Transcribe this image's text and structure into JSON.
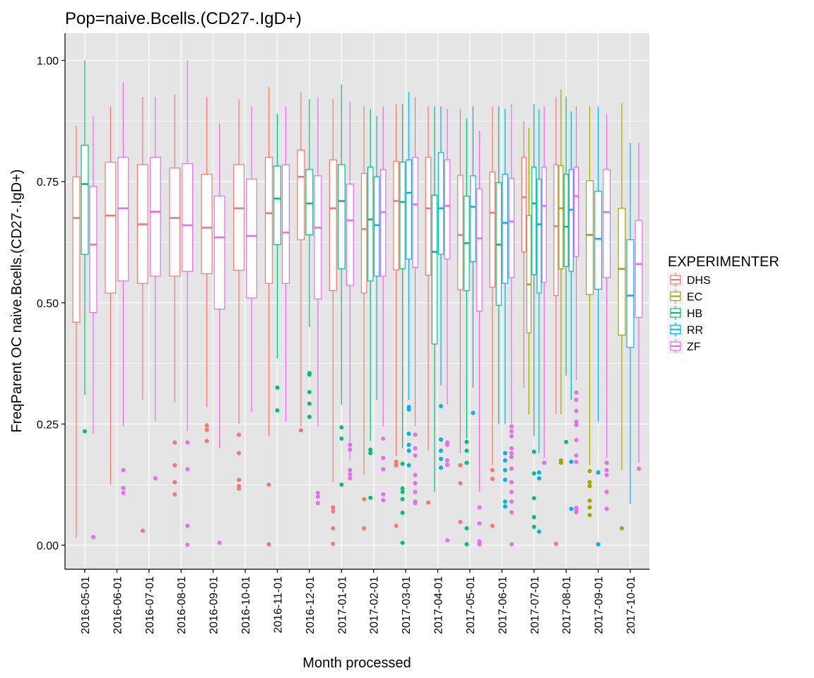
{
  "chart_data": {
    "type": "boxplot",
    "title": "Pop=naive.Bcells.(CD27-.IgD+)",
    "xlabel": "Month processed",
    "ylabel": "FreqParent OC naive.Bcells.(CD27-.IgD+)",
    "ylim": [
      -0.05,
      1.05
    ],
    "yticks": [
      0.0,
      0.25,
      0.5,
      0.75,
      1.0
    ],
    "ytick_labels": [
      "0.00",
      "0.25",
      "0.50",
      "0.75",
      "1.00"
    ],
    "grid": true,
    "legend": {
      "title": "EXPERIMENTER",
      "position": "right",
      "entries": [
        "DHS",
        "EC",
        "HB",
        "RR",
        "ZF"
      ]
    },
    "colors": {
      "DHS": "#F8766D",
      "EC": "#A3A500",
      "HB": "#00BF7D",
      "RR": "#00B0F6",
      "ZF": "#E76BF3",
      "panel": "#E5E5E5",
      "grid": "#FFFFFF"
    },
    "categories": [
      "2016-05-01",
      "2016-06-01",
      "2016-07-01",
      "2016-08-01",
      "2016-09-01",
      "2016-10-01",
      "2016-11-01",
      "2016-12-01",
      "2017-01-01",
      "2017-02-01",
      "2017-03-01",
      "2017-04-01",
      "2017-05-01",
      "2017-06-01",
      "2017-07-01",
      "2017-08-01",
      "2017-09-01",
      "2017-10-01"
    ],
    "groups": [
      {
        "category": "2016-05-01",
        "boxes": [
          {
            "series": "DHS",
            "q1": 0.46,
            "median": 0.675,
            "q3": 0.76,
            "lower": 0.015,
            "upper": 0.865,
            "outliers": []
          },
          {
            "series": "HB",
            "q1": 0.6,
            "median": 0.745,
            "q3": 0.825,
            "lower": 0.31,
            "upper": 1.0,
            "outliers": [
              0.235
            ]
          },
          {
            "series": "ZF",
            "q1": 0.48,
            "median": 0.62,
            "q3": 0.74,
            "lower": 0.23,
            "upper": 0.885,
            "outliers": [
              0.017
            ]
          }
        ]
      },
      {
        "category": "2016-06-01",
        "boxes": [
          {
            "series": "DHS",
            "q1": 0.52,
            "median": 0.68,
            "q3": 0.79,
            "lower": 0.125,
            "upper": 0.905,
            "outliers": []
          },
          {
            "series": "ZF",
            "q1": 0.545,
            "median": 0.695,
            "q3": 0.8,
            "lower": 0.245,
            "upper": 0.955,
            "outliers": [
              0.155,
              0.118,
              0.108
            ]
          }
        ]
      },
      {
        "category": "2016-07-01",
        "boxes": [
          {
            "series": "DHS",
            "q1": 0.54,
            "median": 0.662,
            "q3": 0.785,
            "lower": 0.3,
            "upper": 0.925,
            "outliers": [
              0.03
            ]
          },
          {
            "series": "ZF",
            "q1": 0.555,
            "median": 0.688,
            "q3": 0.8,
            "lower": 0.255,
            "upper": 0.925,
            "outliers": [
              0.138
            ]
          }
        ]
      },
      {
        "category": "2016-08-01",
        "boxes": [
          {
            "series": "DHS",
            "q1": 0.555,
            "median": 0.675,
            "q3": 0.778,
            "lower": 0.295,
            "upper": 0.93,
            "outliers": [
              0.212,
              0.165,
              0.13,
              0.105
            ]
          },
          {
            "series": "ZF",
            "q1": 0.565,
            "median": 0.66,
            "q3": 0.787,
            "lower": 0.235,
            "upper": 1.0,
            "outliers": [
              0.212,
              0.157,
              0.04,
              0.001
            ]
          }
        ]
      },
      {
        "category": "2016-09-01",
        "boxes": [
          {
            "series": "DHS",
            "q1": 0.56,
            "median": 0.655,
            "q3": 0.765,
            "lower": 0.285,
            "upper": 0.925,
            "outliers": [
              0.247,
              0.238,
              0.215
            ]
          },
          {
            "series": "ZF",
            "q1": 0.487,
            "median": 0.635,
            "q3": 0.72,
            "lower": 0.2,
            "upper": 0.87,
            "outliers": [
              0.005
            ]
          }
        ]
      },
      {
        "category": "2016-10-01",
        "boxes": [
          {
            "series": "DHS",
            "q1": 0.567,
            "median": 0.695,
            "q3": 0.785,
            "lower": 0.25,
            "upper": 0.92,
            "outliers": [
              0.228,
              0.19,
              0.135,
              0.122,
              0.117
            ]
          },
          {
            "series": "ZF",
            "q1": 0.51,
            "median": 0.638,
            "q3": 0.755,
            "lower": 0.275,
            "upper": 0.905,
            "outliers": []
          }
        ]
      },
      {
        "category": "2016-11-01",
        "boxes": [
          {
            "series": "DHS",
            "q1": 0.54,
            "median": 0.685,
            "q3": 0.8,
            "lower": 0.225,
            "upper": 0.945,
            "outliers": [
              0.125,
              0.002
            ]
          },
          {
            "series": "HB",
            "q1": 0.62,
            "median": 0.715,
            "q3": 0.782,
            "lower": 0.385,
            "upper": 0.89,
            "outliers": [
              0.325,
              0.278
            ]
          },
          {
            "series": "ZF",
            "q1": 0.54,
            "median": 0.645,
            "q3": 0.785,
            "lower": 0.255,
            "upper": 0.905,
            "outliers": []
          }
        ]
      },
      {
        "category": "2016-12-01",
        "boxes": [
          {
            "series": "DHS",
            "q1": 0.63,
            "median": 0.76,
            "q3": 0.815,
            "lower": 0.245,
            "upper": 0.935,
            "outliers": [
              0.237
            ]
          },
          {
            "series": "HB",
            "q1": 0.64,
            "median": 0.705,
            "q3": 0.775,
            "lower": 0.45,
            "upper": 0.92,
            "outliers": [
              0.355,
              0.352,
              0.316,
              0.292,
              0.265
            ]
          },
          {
            "series": "ZF",
            "q1": 0.508,
            "median": 0.655,
            "q3": 0.762,
            "lower": 0.245,
            "upper": 0.925,
            "outliers": [
              0.108,
              0.1,
              0.087
            ]
          }
        ]
      },
      {
        "category": "2017-01-01",
        "boxes": [
          {
            "series": "DHS",
            "q1": 0.525,
            "median": 0.695,
            "q3": 0.795,
            "lower": 0.13,
            "upper": 0.92,
            "outliers": [
              0.078,
              0.07,
              0.035,
              0.003
            ]
          },
          {
            "series": "HB",
            "q1": 0.57,
            "median": 0.71,
            "q3": 0.785,
            "lower": 0.29,
            "upper": 0.95,
            "outliers": [
              0.243,
              0.22,
              0.125
            ]
          },
          {
            "series": "ZF",
            "q1": 0.536,
            "median": 0.67,
            "q3": 0.745,
            "lower": 0.175,
            "upper": 0.915,
            "outliers": [
              0.207,
              0.197,
              0.155,
              0.146,
              0.138
            ]
          }
        ]
      },
      {
        "category": "2017-02-01",
        "boxes": [
          {
            "series": "DHS",
            "q1": 0.52,
            "median": 0.652,
            "q3": 0.767,
            "lower": 0.145,
            "upper": 0.905,
            "outliers": [
              0.095,
              0.035
            ]
          },
          {
            "series": "HB",
            "q1": 0.545,
            "median": 0.672,
            "q3": 0.78,
            "lower": 0.215,
            "upper": 0.9,
            "outliers": [
              0.197,
              0.19,
              0.098
            ]
          },
          {
            "series": "RR",
            "q1": 0.555,
            "median": 0.66,
            "q3": 0.76,
            "lower": 0.3,
            "upper": 0.885,
            "outliers": []
          },
          {
            "series": "ZF",
            "q1": 0.555,
            "median": 0.687,
            "q3": 0.775,
            "lower": 0.245,
            "upper": 0.905,
            "outliers": [
              0.22,
              0.18,
              0.157,
              0.105,
              0.093
            ]
          }
        ]
      },
      {
        "category": "2017-03-01",
        "boxes": [
          {
            "series": "DHS",
            "q1": 0.568,
            "median": 0.71,
            "q3": 0.792,
            "lower": 0.185,
            "upper": 0.91,
            "outliers": [
              0.172,
              0.165,
              0.04
            ]
          },
          {
            "series": "HB",
            "q1": 0.57,
            "median": 0.708,
            "q3": 0.79,
            "lower": 0.2,
            "upper": 0.91,
            "outliers": [
              0.168,
              0.117,
              0.11,
              0.095,
              0.067,
              0.005
            ]
          },
          {
            "series": "RR",
            "q1": 0.59,
            "median": 0.727,
            "q3": 0.795,
            "lower": 0.3,
            "upper": 0.935,
            "outliers": [
              0.285,
              0.28,
              0.23,
              0.207,
              0.195,
              0.165
            ]
          },
          {
            "series": "ZF",
            "q1": 0.573,
            "median": 0.703,
            "q3": 0.8,
            "lower": 0.245,
            "upper": 0.925,
            "outliers": [
              0.228,
              0.2,
              0.185,
              0.145,
              0.128,
              0.11,
              0.09,
              0.087
            ]
          }
        ]
      },
      {
        "category": "2017-04-01",
        "boxes": [
          {
            "series": "DHS",
            "q1": 0.557,
            "median": 0.695,
            "q3": 0.8,
            "lower": 0.195,
            "upper": 0.905,
            "outliers": [
              0.088
            ]
          },
          {
            "series": "HB",
            "q1": 0.415,
            "median": 0.605,
            "q3": 0.722,
            "lower": 0.11,
            "upper": 0.905,
            "outliers": []
          },
          {
            "series": "RR",
            "q1": 0.6,
            "median": 0.695,
            "q3": 0.81,
            "lower": 0.33,
            "upper": 0.905,
            "outliers": [
              0.287,
              0.218,
              0.195,
              0.178,
              0.16
            ]
          },
          {
            "series": "ZF",
            "q1": 0.59,
            "median": 0.7,
            "q3": 0.795,
            "lower": 0.29,
            "upper": 0.9,
            "outliers": [
              0.212,
              0.207,
              0.175,
              0.166,
              0.01
            ]
          }
        ]
      },
      {
        "category": "2017-05-01",
        "boxes": [
          {
            "series": "DHS",
            "q1": 0.527,
            "median": 0.64,
            "q3": 0.763,
            "lower": 0.19,
            "upper": 0.9,
            "outliers": [
              0.165,
              0.128,
              0.048
            ]
          },
          {
            "series": "HB",
            "q1": 0.525,
            "median": 0.623,
            "q3": 0.72,
            "lower": 0.22,
            "upper": 0.88,
            "outliers": [
              0.213,
              0.195,
              0.17,
              0.035,
              0.002
            ]
          },
          {
            "series": "RR",
            "q1": 0.585,
            "median": 0.698,
            "q3": 0.762,
            "lower": 0.325,
            "upper": 0.905,
            "outliers": [
              0.273
            ]
          },
          {
            "series": "ZF",
            "q1": 0.483,
            "median": 0.633,
            "q3": 0.735,
            "lower": 0.11,
            "upper": 0.855,
            "outliers": [
              0.078,
              0.045,
              0.008,
              0.002
            ]
          }
        ]
      },
      {
        "category": "2017-06-01",
        "boxes": [
          {
            "series": "DHS",
            "q1": 0.532,
            "median": 0.686,
            "q3": 0.77,
            "lower": 0.165,
            "upper": 0.905,
            "outliers": [
              0.155,
              0.137,
              0.04
            ]
          },
          {
            "series": "HB",
            "q1": 0.495,
            "median": 0.62,
            "q3": 0.748,
            "lower": 0.25,
            "upper": 0.905,
            "outliers": []
          },
          {
            "series": "RR",
            "q1": 0.54,
            "median": 0.665,
            "q3": 0.765,
            "lower": 0.25,
            "upper": 0.9,
            "outliers": [
              0.19,
              0.175,
              0.155,
              0.135,
              0.09,
              0.08
            ]
          },
          {
            "series": "ZF",
            "q1": 0.552,
            "median": 0.668,
            "q3": 0.757,
            "lower": 0.25,
            "upper": 0.91,
            "outliers": [
              0.245,
              0.235,
              0.225,
              0.2,
              0.19,
              0.182,
              0.158,
              0.13,
              0.11,
              0.09,
              0.068,
              0.002
            ]
          }
        ]
      },
      {
        "category": "2017-07-01",
        "boxes": [
          {
            "series": "DHS",
            "q1": 0.605,
            "median": 0.718,
            "q3": 0.8,
            "lower": 0.325,
            "upper": 0.875,
            "outliers": []
          },
          {
            "series": "EC",
            "q1": 0.438,
            "median": 0.538,
            "q3": 0.68,
            "lower": 0.27,
            "upper": 0.86,
            "outliers": []
          },
          {
            "series": "HB",
            "q1": 0.558,
            "median": 0.705,
            "q3": 0.78,
            "lower": 0.225,
            "upper": 0.91,
            "outliers": [
              0.193,
              0.148,
              0.097,
              0.058,
              0.038
            ]
          },
          {
            "series": "RR",
            "q1": 0.52,
            "median": 0.662,
            "q3": 0.755,
            "lower": 0.19,
            "upper": 0.9,
            "outliers": [
              0.15,
              0.138,
              0.028
            ]
          },
          {
            "series": "ZF",
            "q1": 0.542,
            "median": 0.7,
            "q3": 0.78,
            "lower": 0.18,
            "upper": 0.905,
            "outliers": [
              0.17
            ]
          }
        ]
      },
      {
        "category": "2017-08-01",
        "boxes": [
          {
            "series": "DHS",
            "q1": 0.515,
            "median": 0.658,
            "q3": 0.785,
            "lower": 0.27,
            "upper": 0.925,
            "outliers": [
              0.003
            ]
          },
          {
            "series": "EC",
            "q1": 0.57,
            "median": 0.695,
            "q3": 0.783,
            "lower": 0.27,
            "upper": 0.94,
            "outliers": [
              0.175,
              0.17
            ]
          },
          {
            "series": "HB",
            "q1": 0.575,
            "median": 0.657,
            "q3": 0.765,
            "lower": 0.35,
            "upper": 0.925,
            "outliers": [
              0.213
            ]
          },
          {
            "series": "RR",
            "q1": 0.565,
            "median": 0.692,
            "q3": 0.775,
            "lower": 0.3,
            "upper": 0.895,
            "outliers": [
              0.172,
              0.075
            ]
          },
          {
            "series": "ZF",
            "q1": 0.595,
            "median": 0.72,
            "q3": 0.78,
            "lower": 0.34,
            "upper": 0.905,
            "outliers": [
              0.315,
              0.3,
              0.277,
              0.255,
              0.248,
              0.217,
              0.185,
              0.172,
              0.077,
              0.072,
              0.068
            ]
          }
        ]
      },
      {
        "category": "2017-09-01",
        "boxes": [
          {
            "series": "EC",
            "q1": 0.517,
            "median": 0.64,
            "q3": 0.752,
            "lower": 0.165,
            "upper": 0.905,
            "outliers": [
              0.153,
              0.13,
              0.122,
              0.092,
              0.078,
              0.062
            ]
          },
          {
            "series": "RR",
            "q1": 0.528,
            "median": 0.632,
            "q3": 0.73,
            "lower": 0.255,
            "upper": 0.905,
            "outliers": [
              0.15,
              0.002
            ]
          },
          {
            "series": "ZF",
            "q1": 0.552,
            "median": 0.687,
            "q3": 0.775,
            "lower": 0.18,
            "upper": 0.89,
            "outliers": [
              0.17,
              0.155,
              0.145,
              0.11,
              0.075
            ]
          }
        ]
      },
      {
        "category": "2017-10-01",
        "boxes": [
          {
            "series": "EC",
            "q1": 0.433,
            "median": 0.57,
            "q3": 0.695,
            "lower": 0.155,
            "upper": 0.912,
            "outliers": [
              0.035
            ]
          },
          {
            "series": "RR",
            "q1": 0.408,
            "median": 0.515,
            "q3": 0.63,
            "lower": 0.085,
            "upper": 0.83,
            "outliers": []
          },
          {
            "series": "ZF",
            "q1": 0.47,
            "median": 0.58,
            "q3": 0.67,
            "lower": 0.17,
            "upper": 0.83,
            "outliers": [
              0.158
            ]
          }
        ]
      }
    ]
  }
}
